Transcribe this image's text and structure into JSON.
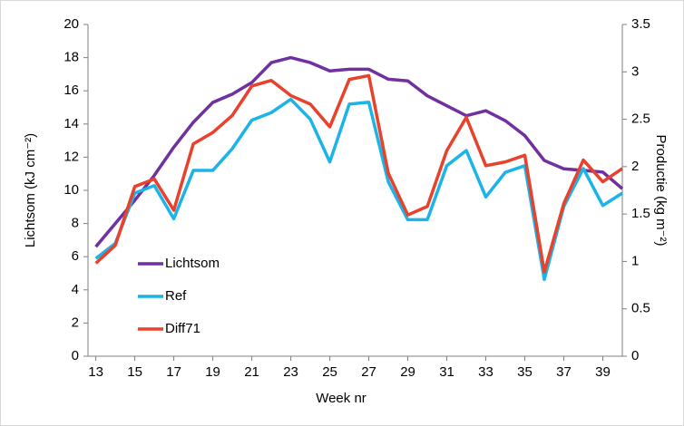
{
  "chart_data": {
    "type": "line",
    "x_label": "Week nr",
    "y_label": "Lichtsom (kJ cm⁻²)",
    "y2_label": "Productie (kg m⁻²)",
    "x": [
      13,
      14,
      15,
      16,
      17,
      18,
      19,
      20,
      21,
      22,
      23,
      24,
      25,
      26,
      27,
      28,
      29,
      30,
      31,
      32,
      33,
      34,
      35,
      36,
      37,
      38,
      39,
      40
    ],
    "xlim": [
      12.6,
      40
    ],
    "xticks": [
      13,
      15,
      17,
      19,
      21,
      23,
      25,
      27,
      29,
      31,
      33,
      35,
      37,
      39
    ],
    "ylim": [
      0,
      20
    ],
    "yticks": [
      0,
      2,
      4,
      6,
      8,
      10,
      12,
      14,
      16,
      18,
      20
    ],
    "y2lim": [
      0,
      3.5
    ],
    "y2ticks": [
      0,
      0.5,
      1,
      1.5,
      2,
      2.5,
      3,
      3.5
    ],
    "grid": false,
    "legend": "lower left",
    "series": [
      {
        "name": "Lichtsom",
        "color": "#7030a0",
        "values": [
          6.6,
          8.0,
          9.4,
          10.9,
          12.6,
          14.1,
          15.3,
          15.8,
          16.5,
          17.7,
          18.0,
          17.7,
          17.2,
          17.3,
          17.3,
          16.7,
          16.6,
          15.7,
          15.1,
          14.5,
          14.8,
          14.2,
          13.3,
          11.8,
          11.3,
          11.2,
          11.1,
          10.1
        ]
      },
      {
        "name": "Ref",
        "color": "#1cb4e8",
        "axis": "y2",
        "values": [
          1.03,
          1.19,
          1.72,
          1.8,
          1.45,
          1.96,
          1.96,
          2.19,
          2.49,
          2.57,
          2.71,
          2.5,
          2.05,
          2.66,
          2.68,
          1.84,
          1.44,
          1.44,
          2.01,
          2.17,
          1.68,
          1.94,
          2.01,
          0.81,
          1.58,
          1.98,
          1.59,
          1.72
        ]
      },
      {
        "name": "Diff71",
        "color": "#e8412c",
        "axis": "y2",
        "values": [
          0.98,
          1.17,
          1.79,
          1.87,
          1.54,
          2.24,
          2.36,
          2.54,
          2.85,
          2.91,
          2.75,
          2.66,
          2.42,
          2.92,
          2.96,
          1.93,
          1.49,
          1.58,
          2.17,
          2.52,
          2.01,
          2.05,
          2.12,
          0.89,
          1.61,
          2.07,
          1.84,
          1.98
        ]
      }
    ]
  }
}
